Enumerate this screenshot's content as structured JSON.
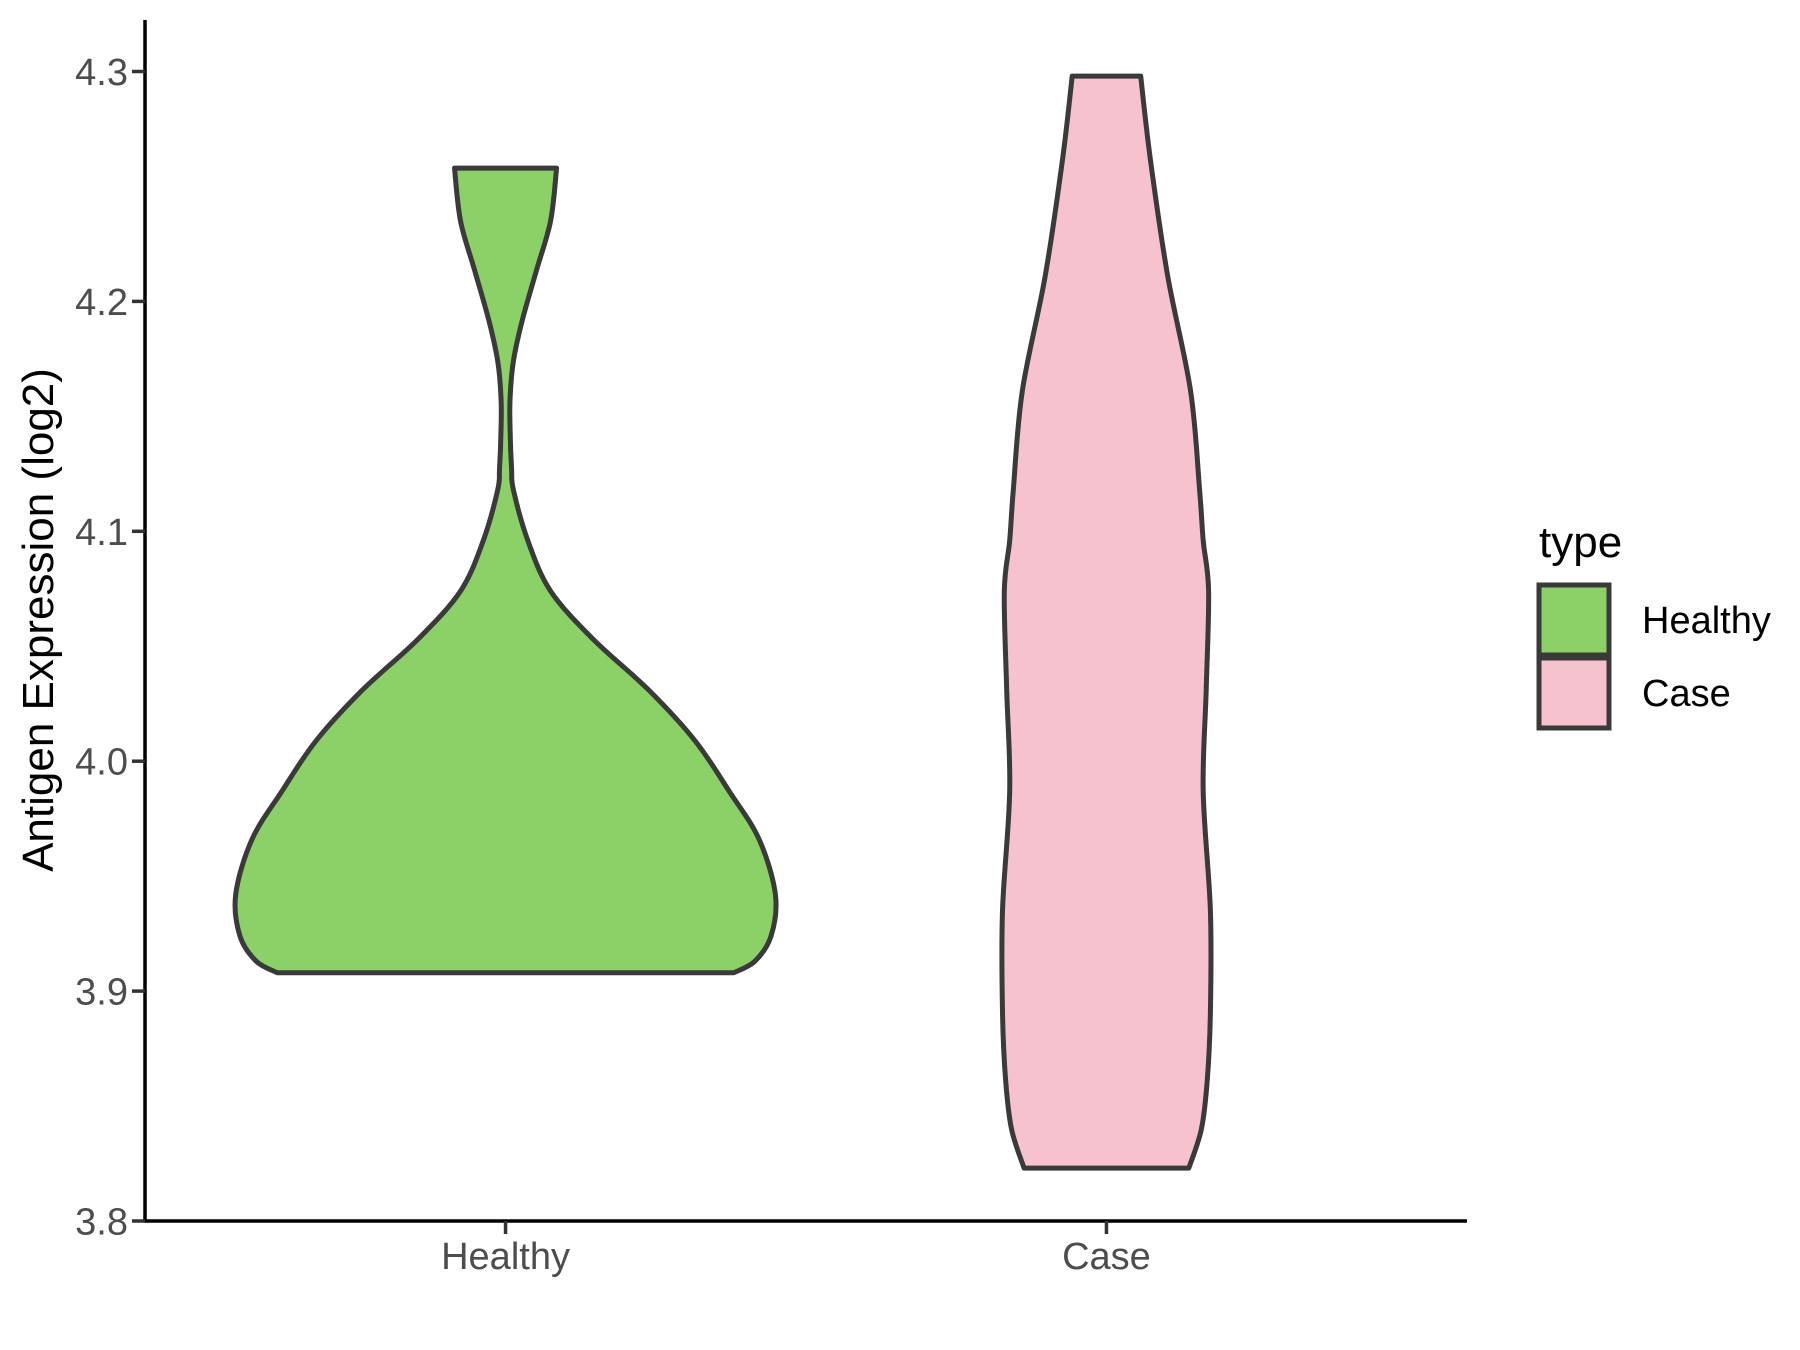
{
  "figure": {
    "background": "#FFFFFF"
  },
  "chart_data": {
    "type": "violin",
    "title": "",
    "xlabel": "",
    "ylabel": "Antigen Expression (log2)",
    "categories": [
      "Healthy",
      "Case"
    ],
    "grid": false,
    "y_axis": {
      "range": [
        3.8,
        4.3224
      ],
      "ticks": [
        {
          "label": "3.8",
          "value": 3.8
        },
        {
          "label": "3.9",
          "value": 3.9
        },
        {
          "label": "4.0",
          "value": 4.0
        },
        {
          "label": "4.1",
          "value": 4.1
        },
        {
          "label": "4.2",
          "value": 4.2
        },
        {
          "label": "4.3",
          "value": 4.3
        }
      ]
    },
    "legend": {
      "title": "type",
      "position": "right",
      "entries": [
        {
          "label": "Healthy",
          "fill": "#8CD168"
        },
        {
          "label": "Case",
          "fill": "#F6C2CE"
        }
      ]
    },
    "style": {
      "violin_outline": "#3A3A3A",
      "axis_line_color": "#000000",
      "tick_color": "#333333",
      "tick_label_color": "#4D4D4D",
      "text_color": "#000000"
    },
    "series": [
      {
        "name": "Healthy",
        "fill": "#8CD168",
        "category_index": 0,
        "y_min": 3.908,
        "y_max": 4.258,
        "profile": [
          [
            4.258,
            0.085
          ],
          [
            4.235,
            0.075
          ],
          [
            4.214,
            0.052
          ],
          [
            4.192,
            0.028
          ],
          [
            4.174,
            0.013
          ],
          [
            4.158,
            0.0075
          ],
          [
            4.144,
            0.0075
          ],
          [
            4.127,
            0.01
          ],
          [
            4.118,
            0.013
          ],
          [
            4.096,
            0.037
          ],
          [
            4.074,
            0.075
          ],
          [
            4.053,
            0.146
          ],
          [
            4.031,
            0.238
          ],
          [
            4.009,
            0.315
          ],
          [
            3.987,
            0.372
          ],
          [
            3.966,
            0.422
          ],
          [
            3.942,
            0.449
          ],
          [
            3.924,
            0.442
          ],
          [
            3.913,
            0.415
          ],
          [
            3.908,
            0.38
          ]
        ]
      },
      {
        "name": "Case",
        "fill": "#F6C2CE",
        "category_index": 1,
        "y_min": 3.823,
        "y_max": 4.298,
        "profile": [
          [
            4.298,
            0.057
          ],
          [
            4.262,
            0.073
          ],
          [
            4.211,
            0.102
          ],
          [
            4.161,
            0.14
          ],
          [
            4.118,
            0.155
          ],
          [
            4.096,
            0.161
          ],
          [
            4.074,
            0.17
          ],
          [
            4.031,
            0.166
          ],
          [
            3.987,
            0.161
          ],
          [
            3.935,
            0.173
          ],
          [
            3.891,
            0.173
          ],
          [
            3.862,
            0.168
          ],
          [
            3.84,
            0.158
          ],
          [
            3.823,
            0.137
          ]
        ]
      }
    ]
  }
}
